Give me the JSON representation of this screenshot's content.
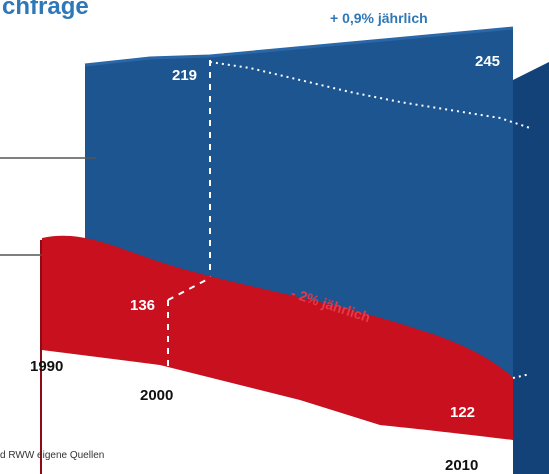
{
  "title_fragment": "chfrage",
  "source_fragment": "d RWW eigene Quellen",
  "colors": {
    "blue": "#1c5590",
    "blue_dark": "#124277",
    "red": "#c8101f",
    "red_dark": "#8f0a14",
    "title": "#2e78b8"
  },
  "chart_data": {
    "type": "area",
    "x": [
      "1990",
      "2000",
      "2010"
    ],
    "series": [
      {
        "values": [
          null,
          219,
          245
        ],
        "color": "#1c5590",
        "annotation": "+ 0,9% jährlich"
      },
      {
        "values": [
          null,
          136,
          122
        ],
        "color": "#c8101f",
        "annotation": "- 2% jährlich"
      }
    ],
    "value_labels": [
      "219",
      "245",
      "136",
      "122"
    ],
    "x_labels": [
      "1990",
      "2000",
      "2010"
    ],
    "grid": false,
    "legend": "none"
  }
}
